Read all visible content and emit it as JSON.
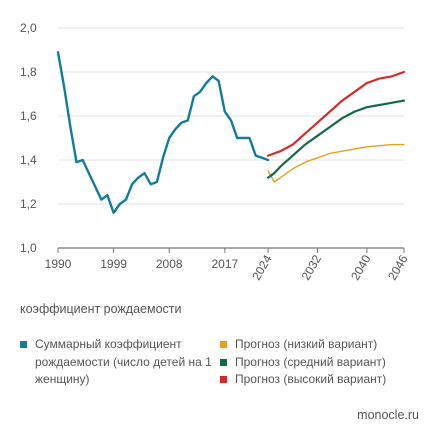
{
  "chart_data": {
    "type": "line",
    "caption": "коэффициент рождаемости",
    "ylim": [
      1.0,
      2.0
    ],
    "yticks": [
      "2,0",
      "1,8",
      "1,6",
      "1,4",
      "1,2",
      "1,0"
    ],
    "ytick_values": [
      2.0,
      1.8,
      1.6,
      1.4,
      1.2,
      1.0
    ],
    "xticks": [
      "1990",
      "1999",
      "2008",
      "2017",
      "2024",
      "2032",
      "2040",
      "2046"
    ],
    "xtick_values": [
      1990,
      1999,
      2008,
      2017,
      2024,
      2032,
      2040,
      2046
    ],
    "xlim": [
      1990,
      2046
    ],
    "grid": "horizontal",
    "legend_placement": "bottom",
    "series": [
      {
        "name": "Суммарный коэффициент рождаемости (число детей на 1 женщину)",
        "color": "#137c9b",
        "x": [
          1990,
          1991,
          1992,
          1993,
          1994,
          1995,
          1996,
          1997,
          1998,
          1999,
          2000,
          2001,
          2002,
          2003,
          2004,
          2005,
          2006,
          2007,
          2008,
          2009,
          2010,
          2011,
          2012,
          2013,
          2014,
          2015,
          2016,
          2017,
          2018,
          2019,
          2020,
          2021,
          2022,
          2023,
          2024
        ],
        "y": [
          1.89,
          1.73,
          1.55,
          1.39,
          1.4,
          1.34,
          1.28,
          1.22,
          1.24,
          1.16,
          1.2,
          1.22,
          1.29,
          1.32,
          1.34,
          1.29,
          1.3,
          1.41,
          1.5,
          1.54,
          1.57,
          1.58,
          1.69,
          1.71,
          1.75,
          1.78,
          1.76,
          1.62,
          1.58,
          1.5,
          1.5,
          1.5,
          1.42,
          1.41,
          1.4
        ]
      },
      {
        "name": "Прогноз (низкий вариант)",
        "color": "#e8a020",
        "x": [
          2024,
          2025,
          2026,
          2028,
          2030,
          2032,
          2034,
          2036,
          2038,
          2040,
          2042,
          2044,
          2046
        ],
        "y": [
          1.35,
          1.3,
          1.32,
          1.36,
          1.39,
          1.41,
          1.43,
          1.44,
          1.45,
          1.46,
          1.465,
          1.47,
          1.47
        ]
      },
      {
        "name": "Прогноз (средний вариант)",
        "color": "#126b46",
        "x": [
          2024,
          2025,
          2026,
          2028,
          2030,
          2032,
          2034,
          2036,
          2038,
          2040,
          2042,
          2044,
          2046
        ],
        "y": [
          1.32,
          1.34,
          1.37,
          1.42,
          1.47,
          1.51,
          1.55,
          1.59,
          1.62,
          1.64,
          1.65,
          1.66,
          1.67
        ]
      },
      {
        "name": "Прогноз (высокий вариант)",
        "color": "#d42a2a",
        "x": [
          2024,
          2025,
          2026,
          2028,
          2030,
          2032,
          2034,
          2036,
          2038,
          2040,
          2042,
          2044,
          2046
        ],
        "y": [
          1.42,
          1.43,
          1.44,
          1.47,
          1.52,
          1.57,
          1.62,
          1.67,
          1.71,
          1.75,
          1.77,
          1.78,
          1.8
        ]
      }
    ]
  },
  "legend": {
    "left": [
      {
        "label": "Суммарный коэффициент рождаемости (число детей на 1 женщину)",
        "color": "#137c9b"
      }
    ],
    "right": [
      {
        "label": "Прогноз (низкий вариант)",
        "color": "#e8a020"
      },
      {
        "label": "Прогноз (средний вариант)",
        "color": "#126b46"
      },
      {
        "label": "Прогноз (высокий вариант)",
        "color": "#d42a2a"
      }
    ]
  },
  "source": "monocle.ru"
}
